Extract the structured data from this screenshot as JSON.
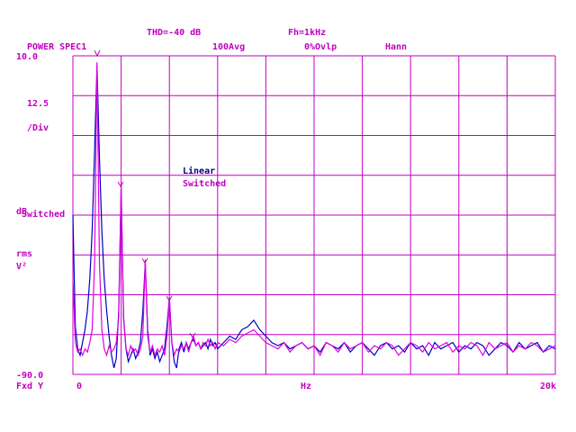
{
  "header": {
    "thd": "THD=-40 dB",
    "fh": "Fh=1kHz",
    "measurement": "POWER SPEC1",
    "averaging": "100Avg",
    "overlap": "0%Ovlp",
    "window": "Hann"
  },
  "chart_data": {
    "type": "line",
    "y_per_div": 12.5,
    "y_div_unit": "/Div",
    "y_unit": "dB",
    "y_unit2": "rms",
    "y_unit3": "V²",
    "y_scale": "Fxd Y",
    "x_label": "Hz",
    "ylim": [
      -90,
      10
    ],
    "yticks": [
      {
        "value": 10,
        "label": "10.0"
      },
      {
        "value": -90,
        "label": "-90.0"
      }
    ],
    "xlim": [
      0,
      20000
    ],
    "xticks": [
      0,
      {
        "value": 20000,
        "label": "20k"
      }
    ],
    "x": [
      0,
      100,
      200,
      300,
      400,
      500,
      600,
      700,
      800,
      900,
      1000,
      1100,
      1200,
      1300,
      1400,
      1500,
      1600,
      1700,
      1800,
      1900,
      2000,
      2100,
      2200,
      2300,
      2400,
      2500,
      2600,
      2700,
      2800,
      2900,
      3000,
      3100,
      3200,
      3300,
      3400,
      3500,
      3600,
      3700,
      3800,
      3900,
      4000,
      4100,
      4200,
      4300,
      4400,
      4500,
      4600,
      4700,
      4800,
      4900,
      5000,
      5100,
      5200,
      5300,
      5400,
      5500,
      5600,
      5700,
      5800,
      5900,
      6000,
      6250,
      6500,
      6750,
      7000,
      7250,
      7500,
      7750,
      8000,
      8250,
      8500,
      8750,
      9000,
      9250,
      9500,
      9750,
      10000,
      10250,
      10500,
      10750,
      11000,
      11250,
      11500,
      11750,
      12000,
      12250,
      12500,
      12750,
      13000,
      13250,
      13500,
      13750,
      14000,
      14250,
      14500,
      14750,
      15000,
      15250,
      15500,
      15750,
      16000,
      16250,
      16500,
      16750,
      17000,
      17250,
      17500,
      17750,
      18000,
      18250,
      18500,
      18750,
      19000,
      19250,
      19500,
      19750,
      20000
    ],
    "series": [
      {
        "name": "Linear",
        "color": "#0000c0",
        "values": [
          -40,
          -75,
          -82,
          -84,
          -80,
          -76,
          -70,
          -60,
          -45,
          -20,
          7,
          -22,
          -45,
          -60,
          -70,
          -78,
          -84,
          -88,
          -85,
          -70,
          -32,
          -72,
          -82,
          -86,
          -84,
          -82,
          -85,
          -83,
          -80,
          -70,
          -55,
          -76,
          -84,
          -82,
          -85,
          -83,
          -86,
          -84,
          -82,
          -75,
          -66,
          -80,
          -86,
          -88,
          -82,
          -80,
          -83,
          -80,
          -82,
          -80,
          -79,
          -81,
          -80,
          -82,
          -81,
          -80,
          -82,
          -79,
          -81,
          -80,
          -82,
          -80,
          -78,
          -79,
          -76,
          -75,
          -73,
          -76,
          -78,
          -80,
          -81,
          -80,
          -82,
          -81,
          -80,
          -82,
          -81,
          -83,
          -80,
          -81,
          -82,
          -80,
          -83,
          -81,
          -80,
          -82,
          -84,
          -81,
          -80,
          -82,
          -81,
          -83,
          -80,
          -82,
          -81,
          -84,
          -80,
          -82,
          -81,
          -80,
          -83,
          -81,
          -82,
          -80,
          -81,
          -84,
          -82,
          -80,
          -81,
          -83,
          -80,
          -82,
          -81,
          -80,
          -83,
          -81,
          -82
        ]
      },
      {
        "name": "Switched",
        "color": "#e000e0",
        "values": [
          -60,
          -80,
          -83,
          -82,
          -84,
          -82,
          -83,
          -80,
          -76,
          -55,
          8,
          -55,
          -76,
          -82,
          -84,
          -81,
          -83,
          -82,
          -80,
          -72,
          -30,
          -72,
          -82,
          -84,
          -81,
          -83,
          -82,
          -84,
          -82,
          -78,
          -54,
          -78,
          -83,
          -81,
          -84,
          -82,
          -83,
          -81,
          -84,
          -78,
          -66,
          -80,
          -84,
          -82,
          -83,
          -81,
          -82,
          -80,
          -83,
          -80,
          -78,
          -81,
          -80,
          -82,
          -80,
          -81,
          -79,
          -81,
          -80,
          -82,
          -80,
          -81,
          -79,
          -80,
          -78,
          -77,
          -76,
          -78,
          -80,
          -81,
          -82,
          -80,
          -83,
          -81,
          -80,
          -82,
          -81,
          -84,
          -80,
          -81,
          -83,
          -80,
          -82,
          -81,
          -80,
          -83,
          -81,
          -82,
          -80,
          -81,
          -84,
          -82,
          -80,
          -81,
          -83,
          -80,
          -82,
          -81,
          -80,
          -83,
          -81,
          -82,
          -80,
          -81,
          -84,
          -80,
          -82,
          -81,
          -80,
          -83,
          -81,
          -82,
          -80,
          -81,
          -83,
          -82,
          -81
        ]
      }
    ]
  }
}
